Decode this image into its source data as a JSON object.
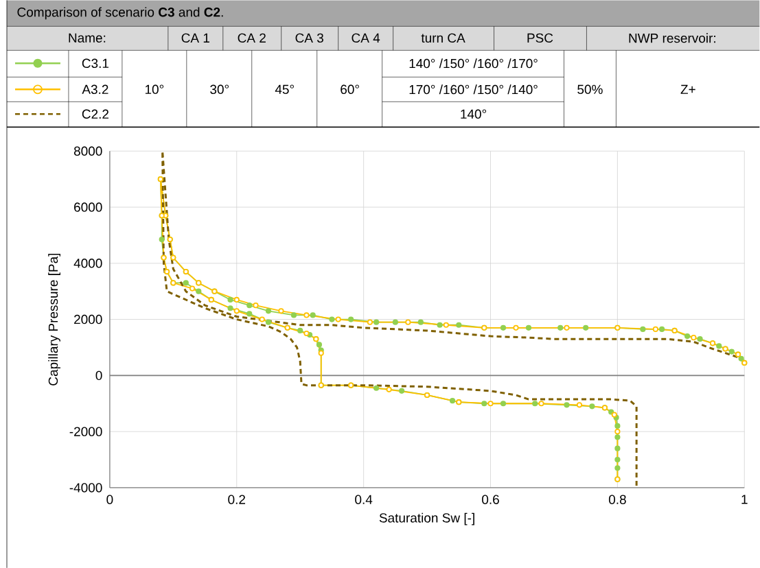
{
  "chart_data": {
    "type": "line",
    "title": "Comparison of scenario **C3** and **C2**.",
    "xlabel": "Saturation Sw [-]",
    "ylabel": "Capillary Pressure [Pa]",
    "xlim": [
      0,
      1
    ],
    "ylim": [
      -4000,
      8000
    ],
    "xticks": [
      0,
      0.2,
      0.4,
      0.6,
      0.8,
      1
    ],
    "yticks": [
      -4000,
      -2000,
      0,
      2000,
      4000,
      6000,
      8000
    ],
    "grid": true,
    "legend": "top",
    "ref_lines": [
      {
        "axis": "y",
        "value": 0,
        "color": "#808080"
      }
    ],
    "annotations": [
      "Name:",
      "CA 1",
      "CA 2",
      "CA 3",
      "CA 4",
      "turn CA",
      "PSC",
      "NWP reservoir:",
      "10°",
      "30°",
      "45°",
      "60°",
      "140° /150° /160° /170°",
      "170° /160° /150° /140°",
      "140°",
      "50%",
      "Z+"
    ],
    "series": [
      {
        "name": "C3.1",
        "color": "#92d050",
        "marker": "circle",
        "line_style": "solid",
        "x": [
          1.0,
          0.995,
          0.99,
          0.98,
          0.97,
          0.96,
          0.95,
          0.93,
          0.91,
          0.89,
          0.87,
          0.84,
          0.8,
          0.75,
          0.71,
          0.66,
          0.62,
          0.59,
          0.55,
          0.52,
          0.49,
          0.45,
          0.42,
          0.38,
          0.35,
          0.32,
          0.29,
          0.25,
          0.22,
          0.19,
          0.165,
          0.14,
          0.12,
          0.1,
          0.095,
          0.088,
          0.08,
          0.082,
          0.082,
          0.085,
          0.09,
          0.1,
          0.12,
          0.14,
          0.16,
          0.19,
          0.22,
          0.25,
          0.28,
          0.3,
          0.315,
          0.325,
          0.33,
          0.333,
          0.333,
          0.38,
          0.42,
          0.46,
          0.5,
          0.54,
          0.55,
          0.59,
          0.62,
          0.67,
          0.72,
          0.76,
          0.78,
          0.79,
          0.798,
          0.8,
          0.8,
          0.8,
          0.8,
          0.8,
          0.8
        ],
        "values": [
          450,
          600,
          750,
          850,
          950,
          1050,
          1150,
          1300,
          1400,
          1600,
          1650,
          1650,
          1700,
          1700,
          1700,
          1700,
          1700,
          1700,
          1800,
          1800,
          1900,
          1900,
          1900,
          2000,
          2000,
          2150,
          2150,
          2300,
          2500,
          2700,
          3000,
          3300,
          3700,
          4200,
          4850,
          5700,
          7000,
          5700,
          4850,
          4200,
          3700,
          3300,
          3300,
          3000,
          2700,
          2400,
          2200,
          1900,
          1700,
          1600,
          1450,
          1300,
          1100,
          900,
          -350,
          -350,
          -450,
          -550,
          -700,
          -900,
          -950,
          -1000,
          -1000,
          -1000,
          -1050,
          -1100,
          -1150,
          -1300,
          -1500,
          -1800,
          -2200,
          -2600,
          -3000,
          -3300,
          -3700
        ]
      },
      {
        "name": "A3.2",
        "color": "#ffc000",
        "marker": "circle",
        "line_style": "solid",
        "x": [
          1.0,
          0.99,
          0.97,
          0.95,
          0.92,
          0.89,
          0.86,
          0.8,
          0.72,
          0.64,
          0.59,
          0.53,
          0.47,
          0.41,
          0.36,
          0.31,
          0.27,
          0.23,
          0.2,
          0.165,
          0.14,
          0.12,
          0.1,
          0.095,
          0.088,
          0.08,
          0.082,
          0.085,
          0.09,
          0.1,
          0.13,
          0.16,
          0.2,
          0.24,
          0.28,
          0.31,
          0.325,
          0.333,
          0.333,
          0.38,
          0.44,
          0.5,
          0.55,
          0.6,
          0.68,
          0.74,
          0.78,
          0.795,
          0.8,
          0.8
        ],
        "values": [
          450,
          750,
          950,
          1150,
          1350,
          1600,
          1650,
          1700,
          1700,
          1700,
          1700,
          1800,
          1900,
          1900,
          2000,
          2150,
          2300,
          2500,
          2700,
          3000,
          3300,
          3700,
          4200,
          4850,
          5700,
          7000,
          5700,
          4200,
          3700,
          3300,
          3100,
          2700,
          2300,
          2000,
          1700,
          1500,
          1300,
          800,
          -350,
          -350,
          -500,
          -700,
          -950,
          -1000,
          -1000,
          -1050,
          -1150,
          -1400,
          -2000,
          -3700
        ]
      },
      {
        "name": "C2.2",
        "color": "#7f6000",
        "marker": "none",
        "line_style": "dashed",
        "x": [
          1.0,
          0.99,
          0.97,
          0.95,
          0.92,
          0.88,
          0.8,
          0.7,
          0.66,
          0.6,
          0.55,
          0.5,
          0.45,
          0.4,
          0.35,
          0.3,
          0.25,
          0.2,
          0.15,
          0.12,
          0.1,
          0.093,
          0.083,
          0.085,
          0.09,
          0.11,
          0.15,
          0.2,
          0.25,
          0.27,
          0.285,
          0.295,
          0.3,
          0.302,
          0.31,
          0.4,
          0.5,
          0.6,
          0.64,
          0.66,
          0.79,
          0.82,
          0.83,
          0.83
        ],
        "values": [
          500,
          650,
          800,
          950,
          1200,
          1300,
          1300,
          1300,
          1350,
          1400,
          1500,
          1600,
          1650,
          1700,
          1800,
          1800,
          1950,
          2100,
          2500,
          3000,
          3800,
          4850,
          8000,
          4000,
          3000,
          2800,
          2400,
          2000,
          1750,
          1550,
          1300,
          1000,
          500,
          -300,
          -350,
          -350,
          -400,
          -550,
          -700,
          -850,
          -850,
          -900,
          -1100,
          -4000
        ]
      }
    ]
  }
}
